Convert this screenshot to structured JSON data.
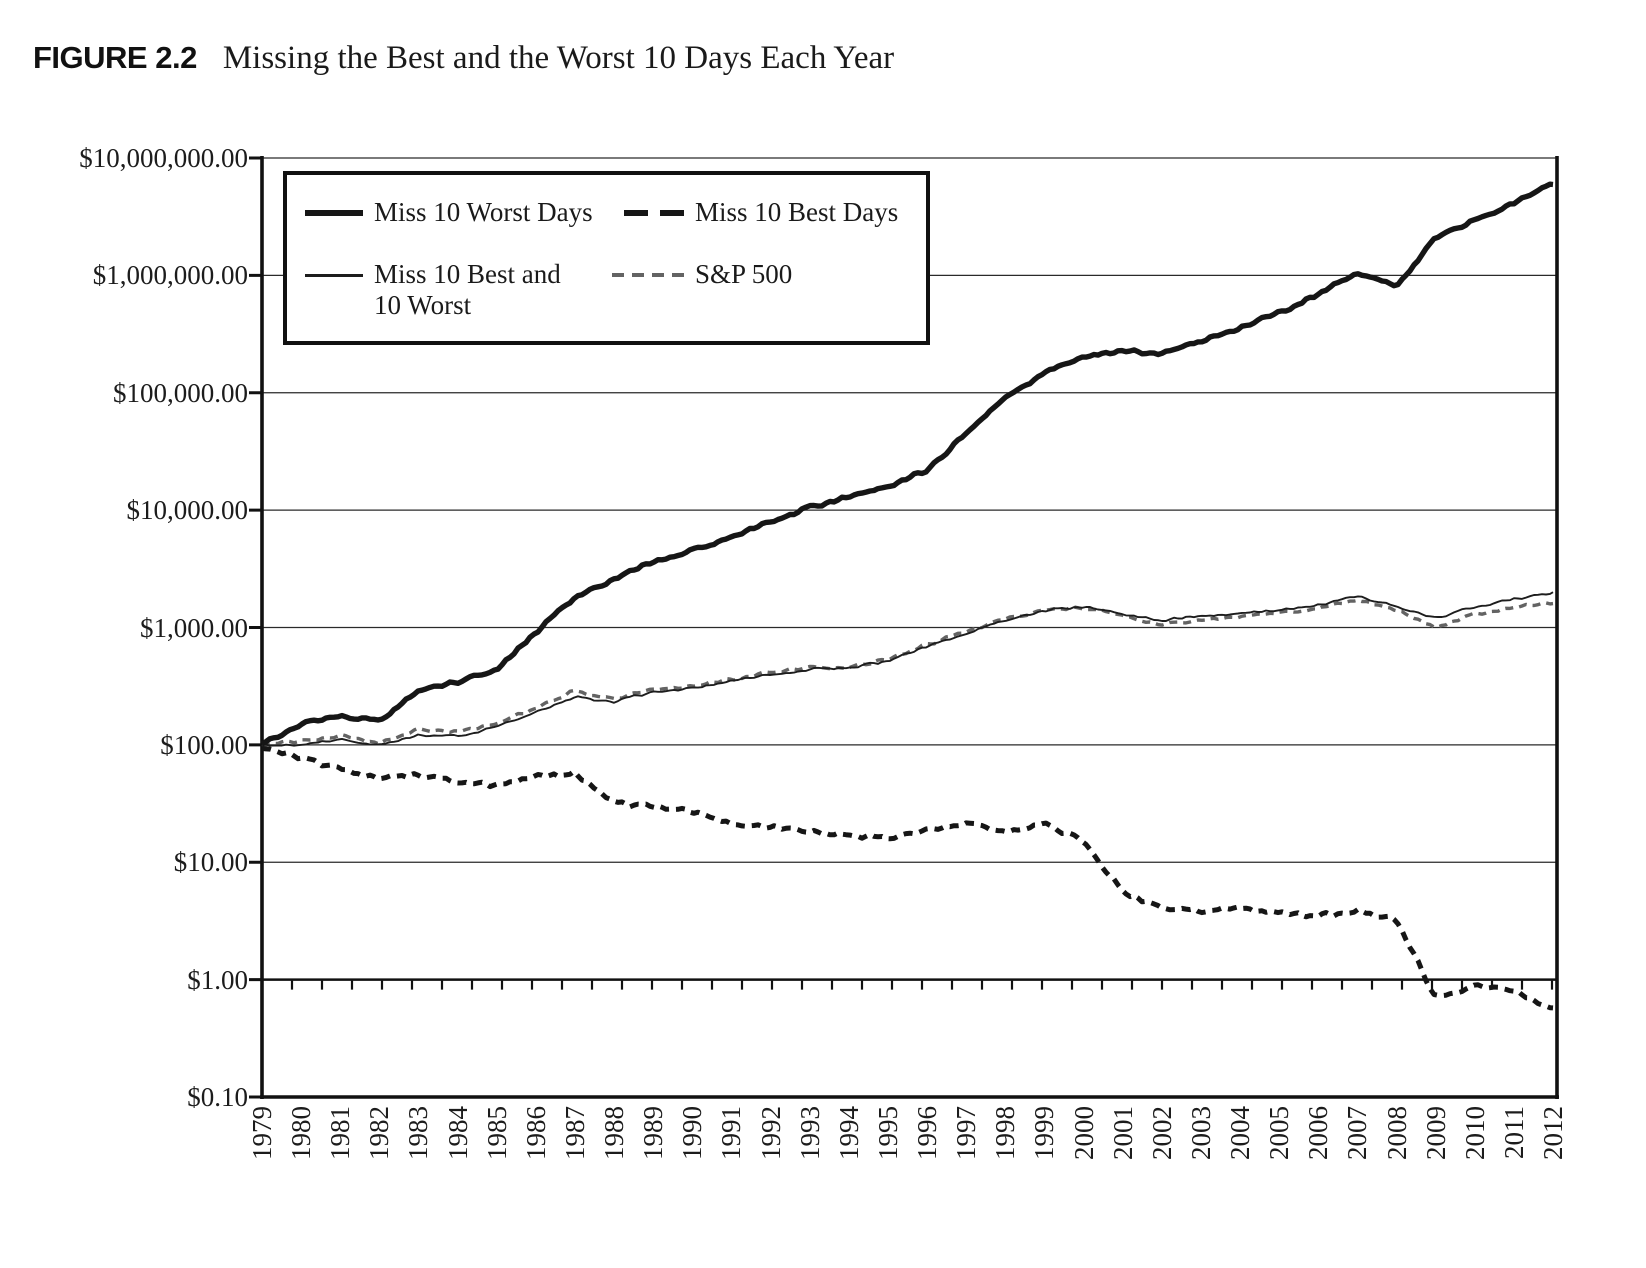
{
  "figure": {
    "label": "FIGURE 2.2",
    "title": "Missing the Best and the Worst 10 Days Each Year"
  },
  "legend": {
    "position": "top-left",
    "items": [
      {
        "label": "Miss 10 Worst Days",
        "style": "thick-solid-black-line"
      },
      {
        "label": "Miss 10 Best Days",
        "style": "thick-dashed-black-line"
      },
      {
        "label": "Miss 10 Best and 10 Worst",
        "style": "thin-solid-black-line"
      },
      {
        "label": "S&P 500",
        "style": "gray-dashed-line"
      }
    ]
  },
  "colors": {
    "line_black": "#161616",
    "line_thin_black": "#1d1d1d",
    "line_gray": "#636363",
    "grid": "#2a2a2a",
    "text": "#1a1a1a"
  },
  "chart_data": {
    "type": "line",
    "title": "Missing the Best and the Worst 10 Days Each Year",
    "xlabel": "",
    "ylabel": "",
    "y_scale": "log",
    "ylim": [
      0.1,
      10000000
    ],
    "grid": "horizontal-log-decades",
    "category_axis_crosses_at": 1.0,
    "y_tick_labels": [
      "$10,000,000.00",
      "$1,000,000.00",
      "$100,000.00",
      "$10,000.00",
      "$1,000.00",
      "$100.00",
      "$10.00",
      "$1.00",
      "$0.10"
    ],
    "x": [
      1979,
      1980,
      1981,
      1982,
      1983,
      1984,
      1985,
      1986,
      1987,
      1988,
      1989,
      1990,
      1991,
      1992,
      1993,
      1994,
      1995,
      1996,
      1997,
      1998,
      1999,
      2000,
      2001,
      2002,
      2003,
      2004,
      2005,
      2006,
      2007,
      2008,
      2009,
      2010,
      2011,
      2012
    ],
    "series": [
      {
        "name": "Miss 10 Worst Days",
        "values": [
          100,
          150,
          175,
          160,
          290,
          345,
          440,
          900,
          1800,
          2600,
          3600,
          4500,
          6000,
          7900,
          10500,
          13000,
          16000,
          22000,
          45000,
          90000,
          150000,
          200000,
          230000,
          215000,
          270000,
          350000,
          480000,
          700000,
          1050000,
          800000,
          2100000,
          2900000,
          4200000,
          6000000
        ]
      },
      {
        "name": "Miss 10 Best Days",
        "values": [
          95,
          76,
          62,
          53,
          56,
          48,
          46,
          53,
          57,
          32,
          30,
          27,
          21,
          20,
          18.5,
          17,
          16,
          19,
          21,
          18,
          21,
          15,
          5.5,
          4.2,
          3.8,
          4.1,
          3.7,
          3.5,
          3.9,
          3.2,
          0.7,
          0.9,
          0.8,
          0.55
        ]
      },
      {
        "name": "Miss 10 Best and 10 Worst",
        "values": [
          100,
          100,
          112,
          98,
          122,
          118,
          142,
          190,
          255,
          235,
          285,
          300,
          350,
          400,
          440,
          455,
          520,
          700,
          900,
          1150,
          1400,
          1500,
          1300,
          1150,
          1250,
          1320,
          1400,
          1550,
          1850,
          1500,
          1200,
          1500,
          1750,
          1950
        ]
      },
      {
        "name": "S&P 500",
        "values": [
          100,
          108,
          120,
          103,
          135,
          128,
          152,
          205,
          290,
          245,
          295,
          315,
          365,
          415,
          455,
          465,
          535,
          715,
          920,
          1180,
          1420,
          1480,
          1260,
          1050,
          1150,
          1250,
          1320,
          1450,
          1750,
          1400,
          1000,
          1300,
          1500,
          1620
        ]
      }
    ]
  }
}
